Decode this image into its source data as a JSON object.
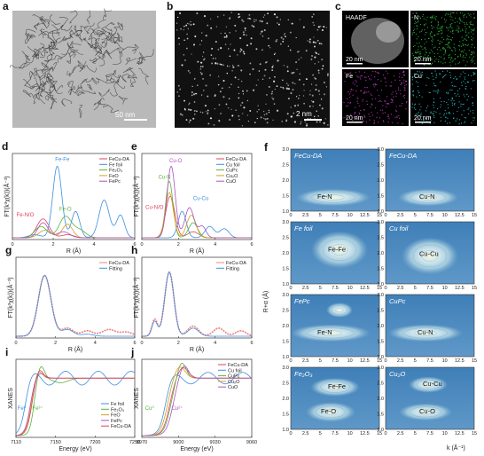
{
  "panels": {
    "a": {
      "label": "a",
      "scale": "50 nm"
    },
    "b": {
      "label": "b",
      "scale": "2 nm"
    },
    "c": {
      "label": "c",
      "maps": [
        {
          "name": "HAADF",
          "scale": "20 nm",
          "color": "#9a9a9a"
        },
        {
          "name": "N",
          "scale": "20 nm",
          "color": "#2ecc40"
        },
        {
          "name": "Fe",
          "scale": "20 nm",
          "color": "#d23fd2"
        },
        {
          "name": "Cu",
          "scale": "20 nm",
          "color": "#2fd8e0"
        }
      ]
    },
    "d": {
      "label": "d",
      "ylabel": "FT(k³χ(k))(Å⁻³)",
      "xlabel": "R (Å)",
      "xticks": [
        "0",
        "2",
        "4",
        "6"
      ],
      "legend": [
        "FeCu-DA",
        "Fe foil",
        "Fe₂O₃",
        "FeO",
        "FePc"
      ],
      "legend_colors": [
        "#e0405a",
        "#3c8fe0",
        "#58b43c",
        "#d4a020",
        "#b050c0"
      ],
      "annotations": [
        "Fe-Fe",
        "Fe-O",
        "Fe-N/O"
      ]
    },
    "e": {
      "label": "e",
      "ylabel": "FT(k³χ(k))(Å⁻³)",
      "xlabel": "R (Å)",
      "xticks": [
        "0",
        "2",
        "4",
        "6"
      ],
      "legend": [
        "FeCu-DA",
        "Cu foil",
        "CuPc",
        "Cu₂O",
        "CuO"
      ],
      "legend_colors": [
        "#e0405a",
        "#3c8fe0",
        "#58b43c",
        "#d4a020",
        "#b050c0"
      ],
      "annotations": [
        "Cu-O",
        "Cu-N",
        "Cu-Cu",
        "Cu-N/O"
      ]
    },
    "g": {
      "label": "g",
      "ylabel": "FT(k³χ(k))(Å⁻³)",
      "xlabel": "R (Å)",
      "xticks": [
        "0",
        "2",
        "4",
        "6"
      ],
      "legend": [
        "FeCu-DA",
        "Fitting"
      ],
      "legend_colors": [
        "#f08080",
        "#3c8fe0"
      ]
    },
    "h": {
      "label": "h",
      "ylabel": "FT(k³χ(k))(Å⁻³)",
      "xlabel": "R (Å)",
      "xticks": [
        "0",
        "2",
        "4",
        "6"
      ],
      "legend": [
        "FeCu-DA",
        "Fitting"
      ],
      "legend_colors": [
        "#f08080",
        "#3c8fe0"
      ]
    },
    "i": {
      "label": "i",
      "ylabel": "XANES",
      "xlabel": "Energy (eV)",
      "xticks": [
        "7110",
        "7150",
        "7200",
        "7250"
      ],
      "legend": [
        "Fe foil",
        "Fe₂O₃",
        "FeO",
        "FePc",
        "FeCu-DA"
      ],
      "legend_colors": [
        "#3c8fe0",
        "#58b43c",
        "#d4a020",
        "#b050c0",
        "#e0405a"
      ],
      "annotations": [
        "Fe⁰",
        "Fe³⁺"
      ]
    },
    "j": {
      "label": "j",
      "ylabel": "XANES",
      "xlabel": "Energy (eV)",
      "xticks": [
        "8970",
        "9000",
        "9030",
        "9060"
      ],
      "legend": [
        "FeCu-DA",
        "Cu foil",
        "CuPc",
        "Cu₂O",
        "CuO"
      ],
      "legend_colors": [
        "#e0405a",
        "#3c8fe0",
        "#58b43c",
        "#d4a020",
        "#b050c0"
      ],
      "annotations": [
        "Cu⁰",
        "Cu²⁺"
      ]
    },
    "f": {
      "label": "f",
      "ylabel": "R+α (Å)",
      "xlabel": "k (Å⁻¹)",
      "yticks": [
        "1.0",
        "1.5",
        "2.0",
        "2.5",
        "3.0"
      ],
      "xticks": [
        "0.0",
        "2.5",
        "5.0",
        "7.5",
        "10.0",
        "12.5",
        "15.0"
      ],
      "xticks_short": [
        "0",
        "2.5",
        "5",
        "7.5",
        "10",
        "12.5",
        "15"
      ],
      "plots": [
        {
          "title": "FeCu-DA",
          "labels": [
            "Fe-N"
          ]
        },
        {
          "title": "FeCu-DA",
          "labels": [
            "Cu-N"
          ]
        },
        {
          "title": "Fe foil",
          "labels": [
            "Fe-Fe"
          ]
        },
        {
          "title": "Cu foil",
          "labels": [
            "Cu-Cu"
          ]
        },
        {
          "title": "FePc",
          "labels": [
            "Fe-N"
          ]
        },
        {
          "title": "CuPc",
          "labels": [
            "Cu-N"
          ]
        },
        {
          "title": "Fe₂O₃",
          "labels": [
            "Fe-Fe",
            "Fe-O"
          ]
        },
        {
          "title": "Cu₂O",
          "labels": [
            "Cu-Cu",
            "Cu-O"
          ]
        }
      ]
    }
  }
}
